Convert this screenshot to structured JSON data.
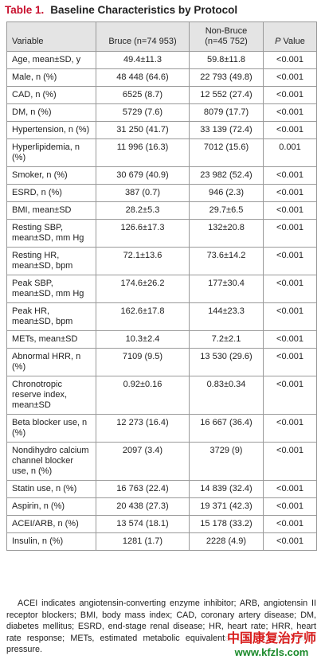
{
  "title": {
    "label": "Table 1.",
    "text": "Baseline Characteristics by Protocol"
  },
  "table": {
    "header": {
      "variable": "Variable",
      "bruce": "Bruce (n=74 953)",
      "nonbruce": "Non-Bruce (n=45 752)",
      "p_value": {
        "symbol": "P",
        "rest": "Value"
      }
    },
    "rows": [
      [
        "Age, mean±SD, y",
        "49.4±11.3",
        "59.8±11.8",
        "<0.001"
      ],
      [
        "Male, n (%)",
        "48 448 (64.6)",
        "22 793 (49.8)",
        "<0.001"
      ],
      [
        "CAD, n (%)",
        "6525 (8.7)",
        "12 552 (27.4)",
        "<0.001"
      ],
      [
        "DM, n (%)",
        "5729 (7.6)",
        "8079 (17.7)",
        "<0.001"
      ],
      [
        "Hypertension, n (%)",
        "31 250 (41.7)",
        "33 139 (72.4)",
        "<0.001"
      ],
      [
        "Hyperlipidemia, n (%)",
        "11 996 (16.3)",
        "7012 (15.6)",
        "0.001"
      ],
      [
        "Smoker, n (%)",
        "30 679 (40.9)",
        "23 982 (52.4)",
        "<0.001"
      ],
      [
        "ESRD, n (%)",
        "387 (0.7)",
        "946 (2.3)",
        "<0.001"
      ],
      [
        "BMI, mean±SD",
        "28.2±5.3",
        "29.7±6.5",
        "<0.001"
      ],
      [
        "Resting SBP, mean±SD, mm Hg",
        "126.6±17.3",
        "132±20.8",
        "<0.001"
      ],
      [
        "Resting HR, mean±SD, bpm",
        "72.1±13.6",
        "73.6±14.2",
        "<0.001"
      ],
      [
        "Peak SBP, mean±SD, mm Hg",
        "174.6±26.2",
        "177±30.4",
        "<0.001"
      ],
      [
        "Peak HR, mean±SD, bpm",
        "162.6±17.8",
        "144±23.3",
        "<0.001"
      ],
      [
        "METs, mean±SD",
        "10.3±2.4",
        "7.2±2.1",
        "<0.001"
      ],
      [
        "Abnormal HRR, n (%)",
        "7109 (9.5)",
        "13 530 (29.6)",
        "<0.001"
      ],
      [
        "Chronotropic reserve index, mean±SD",
        "0.92±0.16",
        "0.83±0.34",
        "<0.001"
      ],
      [
        "Beta blocker use, n (%)",
        "12 273 (16.4)",
        "16 667 (36.4)",
        "<0.001"
      ],
      [
        "Nondihydro calcium channel blocker use, n (%)",
        "2097 (3.4)",
        "3729 (9)",
        "<0.001"
      ],
      [
        "Statin use, n (%)",
        "16 763 (22.4)",
        "14 839 (32.4)",
        "<0.001"
      ],
      [
        "Aspirin, n (%)",
        "20 438 (27.3)",
        "19 371 (42.3)",
        "<0.001"
      ],
      [
        "ACEI/ARB, n (%)",
        "13 574 (18.1)",
        "15 178 (33.2)",
        "<0.001"
      ],
      [
        "Insulin, n (%)",
        "1281 (1.7)",
        "2228 (4.9)",
        "<0.001"
      ]
    ]
  },
  "footnote": "ACEI indicates angiotensin-converting enzyme inhibitor; ARB, angiotensin II receptor blockers; BMI, body mass index; CAD, coronary artery disease; DM, diabetes mellitus; ESRD, end-stage renal disease; HR, heart rate; HRR, heart rate response; METs, estimated metabolic equivalents; SBP, systolic blood pressure.",
  "watermark": {
    "text": "中国康复治疗师",
    "url": "www.kfzls.com"
  }
}
